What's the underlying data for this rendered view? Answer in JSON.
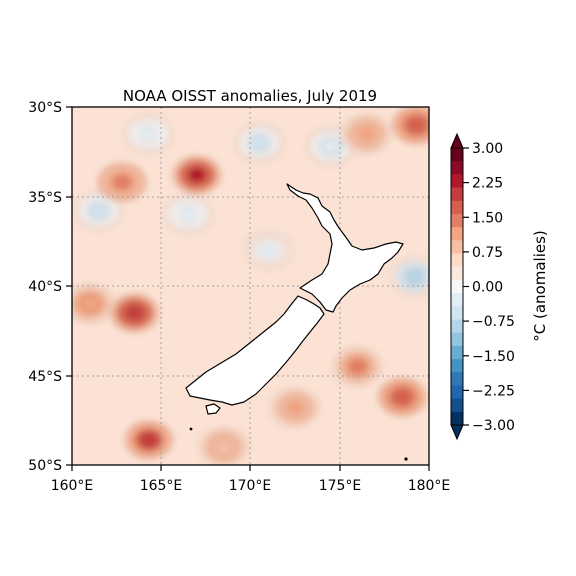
{
  "map": {
    "title": "NOAA OISST anomalies, July 2019",
    "x_ticks": [
      "160°E",
      "165°E",
      "170°E",
      "175°E",
      "180°E"
    ],
    "y_ticks": [
      "30°S",
      "35°S",
      "40°S",
      "45°S",
      "50°S"
    ],
    "extent": {
      "lon_min": 160,
      "lon_max": 180,
      "lat_min": -50,
      "lat_max": -30
    },
    "gridlines": true
  },
  "colorbar": {
    "label": "°C (anomalies)",
    "tick_labels": [
      "3.00",
      "2.25",
      "1.50",
      "0.75",
      "0.00",
      "−0.75",
      "−1.50",
      "−2.25",
      "−3.00"
    ],
    "range": [
      -3,
      3
    ],
    "extend": "both",
    "colors_top_to_bottom": [
      "#67001f",
      "#8b0a26",
      "#b2182b",
      "#c43c3c",
      "#d6604d",
      "#e27e66",
      "#f4a582",
      "#f7bfa4",
      "#fddbc7",
      "#fbe9df",
      "#f7f7f7",
      "#e2eef4",
      "#d1e5f0",
      "#b5d6e8",
      "#92c5de",
      "#6aacd0",
      "#4393c3",
      "#3078b4",
      "#2166ac",
      "#124f8b",
      "#053061"
    ]
  },
  "chart_data": {
    "type": "heatmap",
    "title": "NOAA OISST anomalies, July 2019",
    "x_range": [
      160,
      180
    ],
    "y_range": [
      -50,
      -30
    ],
    "value_range": [
      -3,
      3
    ],
    "colorbar_label": "°C (anomalies)",
    "background_anomaly": 0.5,
    "anomaly_features": [
      {
        "lon": 167.0,
        "lat": -33.8,
        "value": 2.2
      },
      {
        "lon": 162.8,
        "lat": -34.2,
        "value": 1.5
      },
      {
        "lon": 163.5,
        "lat": -41.5,
        "value": 2.1
      },
      {
        "lon": 161.0,
        "lat": -41.0,
        "value": 1.2
      },
      {
        "lon": 164.3,
        "lat": -48.6,
        "value": 2.0
      },
      {
        "lon": 179.3,
        "lat": -31.0,
        "value": 1.8
      },
      {
        "lon": 176.5,
        "lat": -31.5,
        "value": 1.1
      },
      {
        "lon": 178.5,
        "lat": -46.2,
        "value": 1.6
      },
      {
        "lon": 176.0,
        "lat": -44.5,
        "value": 1.3
      },
      {
        "lon": 172.5,
        "lat": -46.8,
        "value": 1.1
      },
      {
        "lon": 168.5,
        "lat": -49.0,
        "value": 1.0
      },
      {
        "lon": 164.3,
        "lat": -31.5,
        "value": -0.3
      },
      {
        "lon": 170.5,
        "lat": -32.0,
        "value": -0.6
      },
      {
        "lon": 161.5,
        "lat": -35.8,
        "value": -0.6
      },
      {
        "lon": 174.5,
        "lat": -32.2,
        "value": -0.4
      },
      {
        "lon": 179.2,
        "lat": -39.5,
        "value": -0.8
      },
      {
        "lon": 166.5,
        "lat": -36.0,
        "value": -0.3
      },
      {
        "lon": 171.0,
        "lat": -38.0,
        "value": -0.2
      }
    ]
  }
}
